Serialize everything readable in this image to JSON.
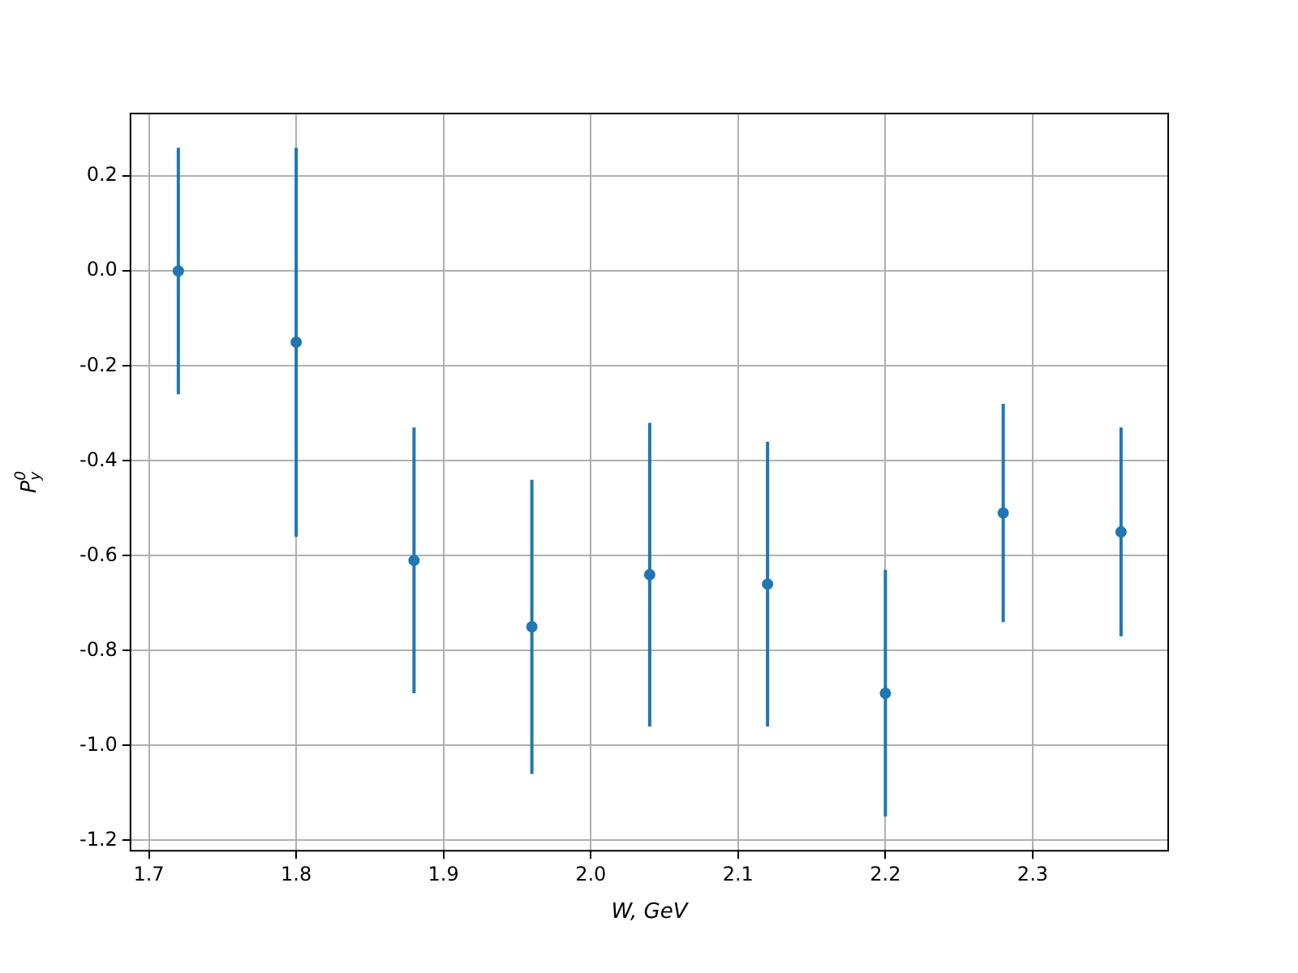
{
  "chart_data": {
    "type": "scatter",
    "xlabel": "W, GeV",
    "ylabel": "P$_{y}$$^{0}$",
    "x": [
      1.72,
      1.8,
      1.88,
      1.96,
      2.04,
      2.12,
      2.2,
      2.28,
      2.36
    ],
    "series": [
      {
        "color": "#1f77b4",
        "values": [
          0.0,
          -0.15,
          -0.61,
          -0.75,
          -0.64,
          -0.66,
          -0.89,
          -0.51,
          -0.55
        ],
        "errors": [
          0.26,
          0.41,
          0.28,
          0.31,
          0.32,
          0.3,
          0.26,
          0.23,
          0.22
        ]
      }
    ],
    "xlim": [
      1.6875,
      2.392
    ],
    "xticks": [
      1.7,
      1.8,
      1.9,
      {
        "value": 2,
        "label": "2.0"
      },
      2.1,
      2.2,
      2.3
    ],
    "ylim": [
      -1.222,
      0.332
    ],
    "yticks": [
      -1.2,
      {
        "value": -1,
        "label": "-1.0"
      },
      -0.8,
      -0.6,
      -0.4,
      -0.2,
      {
        "value": 0,
        "label": "0.0"
      },
      0.2
    ],
    "grid": true,
    "legend": false,
    "marker": "circle"
  }
}
